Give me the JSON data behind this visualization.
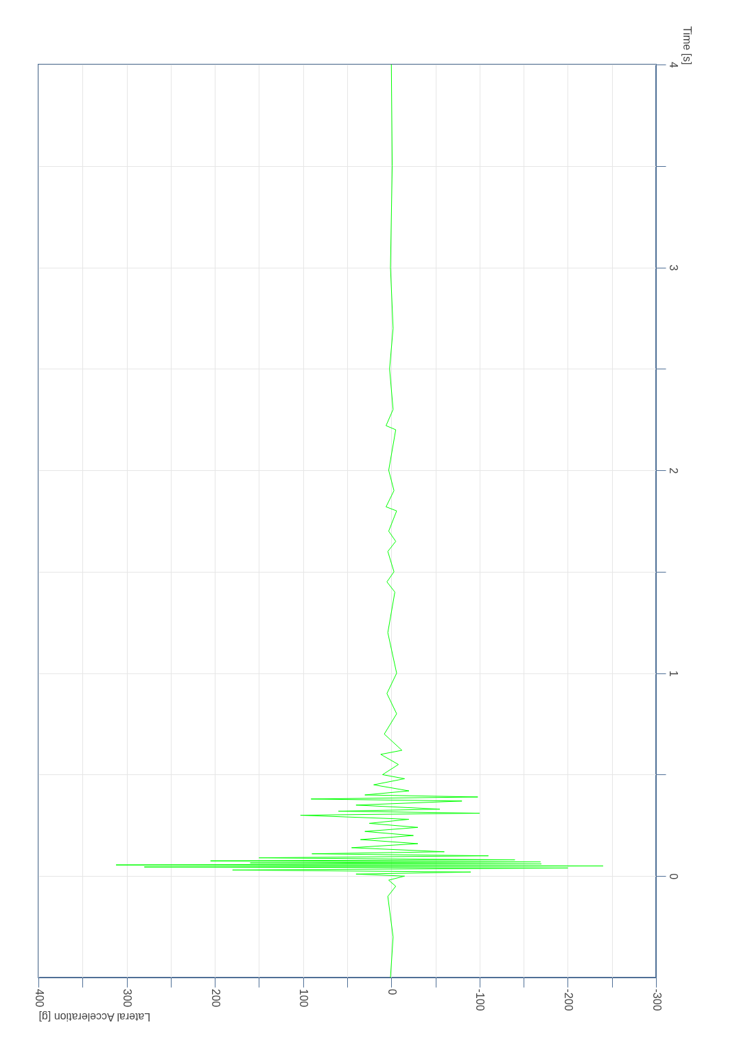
{
  "chart_data": {
    "type": "line",
    "xlabel": "Lateral Acceleration [g]",
    "ylabel": "Time [s]",
    "series": [
      {
        "color": "#00ff00",
        "x": [
          1,
          -2,
          4,
          -5,
          3,
          -15,
          40,
          -90,
          180,
          -200,
          280,
          -240,
          312,
          -170,
          160,
          -169,
          205,
          -140,
          150,
          -110,
          90,
          -60,
          45,
          -30,
          35,
          -25,
          30,
          -30,
          25,
          -20,
          103,
          -100,
          60,
          -55,
          40,
          -80,
          91,
          -98,
          30,
          -20,
          20,
          -15,
          10,
          -8,
          12,
          -12,
          8,
          -6,
          5,
          -6,
          4,
          -4,
          5,
          -3,
          4,
          -5,
          3,
          -6,
          6,
          -3,
          3,
          -5,
          6,
          -2,
          2,
          -2,
          1,
          -1,
          0
        ],
        "values": [
          -0.5,
          -0.3,
          -0.1,
          -0.05,
          -0.02,
          0.0,
          0.01,
          0.02,
          0.03,
          0.04,
          0.045,
          0.05,
          0.055,
          0.06,
          0.065,
          0.07,
          0.075,
          0.08,
          0.09,
          0.1,
          0.11,
          0.12,
          0.14,
          0.16,
          0.18,
          0.2,
          0.22,
          0.24,
          0.26,
          0.28,
          0.3,
          0.31,
          0.32,
          0.33,
          0.35,
          0.37,
          0.38,
          0.39,
          0.4,
          0.42,
          0.45,
          0.48,
          0.5,
          0.55,
          0.6,
          0.62,
          0.7,
          0.8,
          0.9,
          1.0,
          1.2,
          1.4,
          1.45,
          1.5,
          1.6,
          1.65,
          1.7,
          1.8,
          1.82,
          1.9,
          2.0,
          2.2,
          2.22,
          2.3,
          2.5,
          2.7,
          3.0,
          3.5,
          4.0
        ]
      }
    ],
    "ylim": [
      -0.5,
      4
    ],
    "yticks": [
      0,
      {
        "value": 0.5,
        "label": null
      },
      1,
      {
        "value": 1.5,
        "label": null
      },
      2,
      {
        "value": 2.5,
        "label": null
      },
      3,
      {
        "value": 3.5,
        "label": null
      },
      4
    ],
    "xlim": [
      400,
      -300
    ],
    "xticks": [
      400,
      {
        "value": 350,
        "label": null
      },
      300,
      {
        "value": 250,
        "label": null
      },
      200,
      {
        "value": 150,
        "label": null
      },
      100,
      {
        "value": 50,
        "label": null
      },
      0,
      {
        "value": -50,
        "label": null
      },
      -100,
      {
        "value": -150,
        "label": null
      },
      -200,
      {
        "value": -250,
        "label": null
      },
      -300
    ],
    "grid": true,
    "marker": "none",
    "line_style": "solid"
  }
}
